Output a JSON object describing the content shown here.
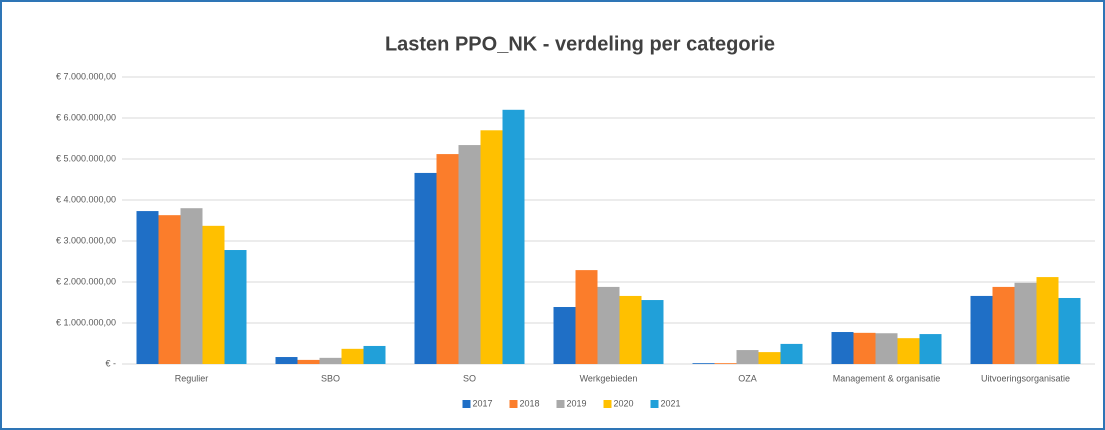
{
  "chart_data": {
    "type": "bar",
    "title": "Lasten PPO_NK - verdeling per categorie",
    "categories": [
      "Regulier",
      "SBO",
      "SO",
      "Werkgebieden",
      "OZA",
      "Management & organisatie",
      "Uitvoeringsorganisatie"
    ],
    "series": [
      {
        "name": "2017",
        "color": "#1f6fc6",
        "values": [
          3730000,
          170000,
          4660000,
          1390000,
          20000,
          780000,
          1660000
        ]
      },
      {
        "name": "2018",
        "color": "#fb7d2b",
        "values": [
          3630000,
          100000,
          5120000,
          2290000,
          20000,
          760000,
          1880000
        ]
      },
      {
        "name": "2019",
        "color": "#a9a9a9",
        "values": [
          3800000,
          150000,
          5340000,
          1880000,
          340000,
          750000,
          1980000
        ]
      },
      {
        "name": "2020",
        "color": "#ffc000",
        "values": [
          3370000,
          370000,
          5700000,
          1660000,
          290000,
          630000,
          2120000
        ]
      },
      {
        "name": "2021",
        "color": "#21a0d9",
        "values": [
          2780000,
          440000,
          6200000,
          1560000,
          490000,
          730000,
          1610000
        ]
      }
    ],
    "ylim": [
      0,
      7000000
    ],
    "yticks": [
      {
        "value": 0,
        "label": "€ -"
      },
      {
        "value": 1000000,
        "label": "€ 1.000.000,00"
      },
      {
        "value": 2000000,
        "label": "€ 2.000.000,00"
      },
      {
        "value": 3000000,
        "label": "€ 3.000.000,00"
      },
      {
        "value": 4000000,
        "label": "€ 4.000.000,00"
      },
      {
        "value": 5000000,
        "label": "€ 5.000.000,00"
      },
      {
        "value": 6000000,
        "label": "€ 6.000.000,00"
      },
      {
        "value": 7000000,
        "label": "€ 7.000.000,00"
      }
    ],
    "grid": true,
    "legend": "bottom"
  }
}
